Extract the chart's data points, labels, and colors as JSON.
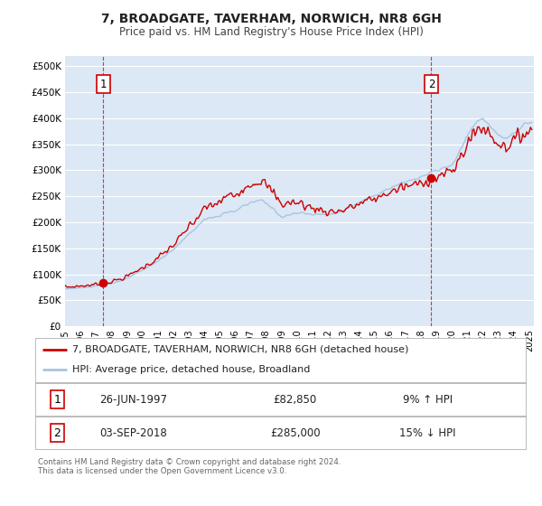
{
  "title": "7, BROADGATE, TAVERHAM, NORWICH, NR8 6GH",
  "subtitle": "Price paid vs. HM Land Registry's House Price Index (HPI)",
  "sale1_date": "26-JUN-1997",
  "sale1_price": 82850,
  "sale1_label": "9% ↑ HPI",
  "sale1_year": 1997.48,
  "sale2_date": "03-SEP-2018",
  "sale2_price": 285000,
  "sale2_label": "15% ↓ HPI",
  "sale2_year": 2018.67,
  "legend_line1": "7, BROADGATE, TAVERHAM, NORWICH, NR8 6GH (detached house)",
  "legend_line2": "HPI: Average price, detached house, Broadland",
  "annotation1": "1",
  "annotation2": "2",
  "footnote1": "Contains HM Land Registry data © Crown copyright and database right 2024.",
  "footnote2": "This data is licensed under the Open Government Licence v3.0.",
  "hpi_color": "#a8c4e0",
  "sale_color": "#cc0000",
  "background_color": "#ffffff",
  "plot_bg": "#dce8f5",
  "grid_color": "#ffffff",
  "ylim": [
    0,
    520000
  ],
  "xlim_start": 1995.0,
  "xlim_end": 2025.3
}
